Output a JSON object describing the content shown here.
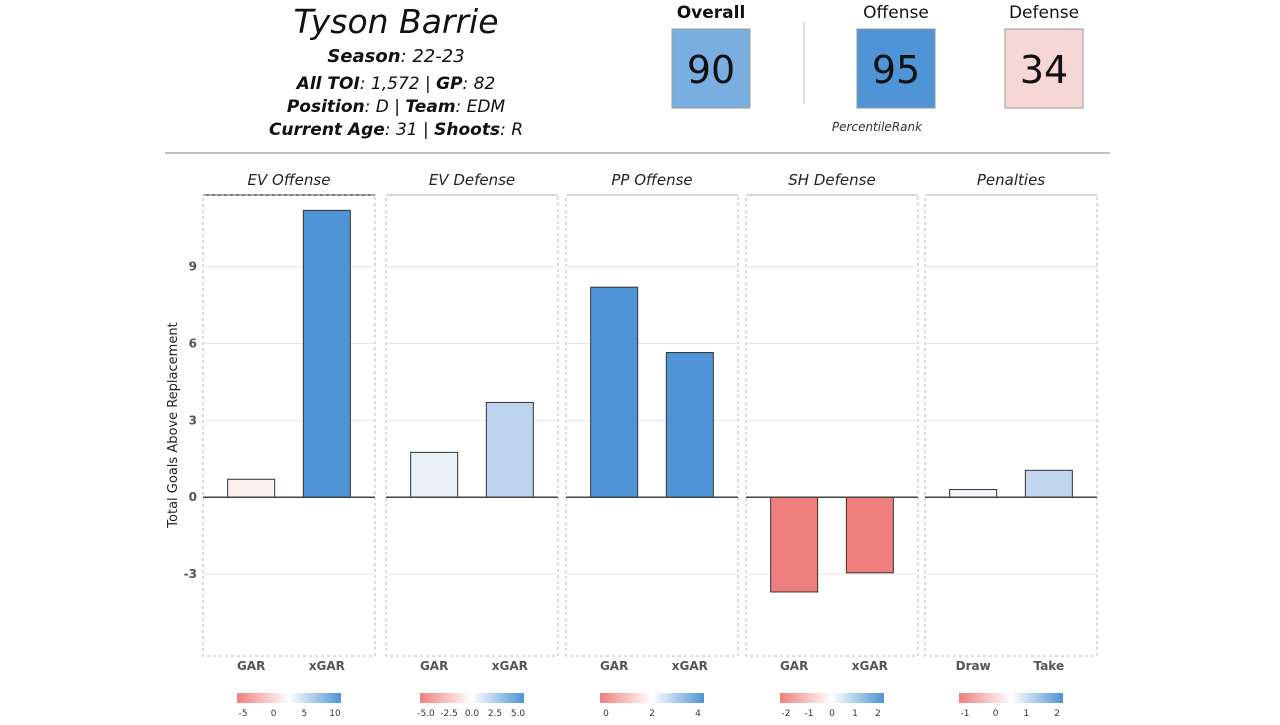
{
  "header": {
    "player_name": "Tyson Barrie",
    "season_label": "Season",
    "season_value": ": 22-23",
    "toi_label": "All TOI",
    "toi_value": ": 1,572 | ",
    "gp_label": "GP",
    "gp_value": ": 82",
    "position_label": "Position",
    "position_value": ": D | ",
    "team_label": "Team",
    "team_value": ": EDM",
    "age_label": "Current Age",
    "age_value": ": 31 | ",
    "shoots_label": "Shoots",
    "shoots_value": ": R"
  },
  "ratings": {
    "overall_label": "Overall",
    "overall_value": "90",
    "offense_label": "Offense",
    "offense_value": "95",
    "defense_label": "Defense",
    "defense_value": "34",
    "caption": "PercentileRank",
    "colors": {
      "overall": "#78aee0",
      "offense": "#4f94d6",
      "defense": "#f7d6d6"
    }
  },
  "chart_data": {
    "type": "bar",
    "ylabel": "Total Goals Above Replacement",
    "ylim": [
      -6.2,
      11.8
    ],
    "yticks": [
      -3,
      0,
      3,
      6,
      9
    ],
    "ytick_labels": [
      "-3",
      "0",
      "3",
      "6",
      "9"
    ],
    "grid": true,
    "panels": [
      {
        "title": "EV Offense",
        "categories": [
          "GAR",
          "xGAR"
        ],
        "values": [
          0.7,
          11.2
        ],
        "colors": [
          "#fdf1f0",
          "#4f94d6"
        ],
        "legend_ticks": [
          "-5",
          "0",
          "5",
          "10"
        ]
      },
      {
        "title": "EV Defense",
        "categories": [
          "GAR",
          "xGAR"
        ],
        "values": [
          1.75,
          3.7
        ],
        "colors": [
          "#e9f0fa",
          "#bcd2ee"
        ],
        "legend_ticks": [
          "-5.0",
          "-2.5",
          "0.0",
          "2.5",
          "5.0"
        ]
      },
      {
        "title": "PP Offense",
        "categories": [
          "GAR",
          "xGAR"
        ],
        "values": [
          8.2,
          5.65
        ],
        "colors": [
          "#4f94d6",
          "#4f94d6"
        ],
        "legend_ticks": [
          "0",
          "2",
          "4"
        ]
      },
      {
        "title": "SH Defense",
        "categories": [
          "GAR",
          "xGAR"
        ],
        "values": [
          -3.7,
          -2.95
        ],
        "colors": [
          "#ef7f7f",
          "#ef7f7f"
        ],
        "legend_ticks": [
          "-2",
          "-1",
          "0",
          "1",
          "2"
        ]
      },
      {
        "title": "Penalties",
        "categories": [
          "Draw",
          "Take"
        ],
        "values": [
          0.3,
          1.05
        ],
        "colors": [
          "#f4f7fc",
          "#c2d6ef"
        ],
        "legend_ticks": [
          "-1",
          "0",
          "1",
          "2"
        ]
      }
    ],
    "gradient_colors": [
      "#ef7f7f",
      "#ffffff",
      "#4f94d6"
    ]
  }
}
